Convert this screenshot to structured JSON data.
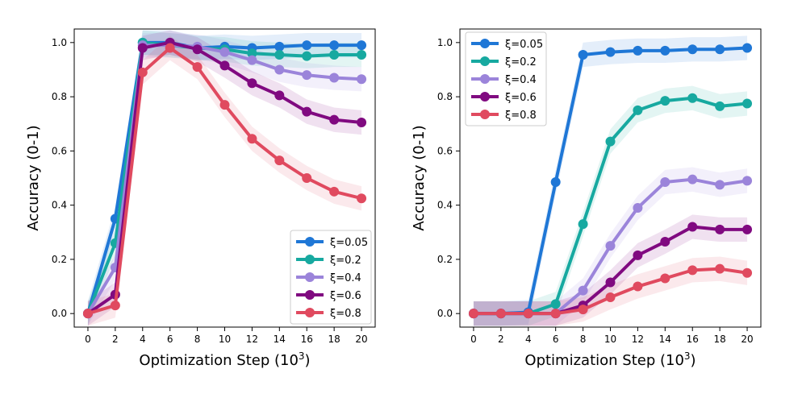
{
  "chart_data": [
    {
      "type": "line",
      "panel": "left",
      "xlabel_main": "Optimization Step (10",
      "xlabel_exp": "3",
      "xlabel_close": ")",
      "ylabel": "Accuracy (0-1)",
      "xlim": [
        -1,
        21
      ],
      "ylim": [
        -0.05,
        1.05
      ],
      "x_ticks": [
        0,
        2,
        4,
        6,
        8,
        10,
        12,
        14,
        16,
        18,
        20
      ],
      "y_ticks": [
        "0.0",
        "0.2",
        "0.4",
        "0.6",
        "0.8",
        "1.0"
      ],
      "x": [
        0,
        2,
        4,
        6,
        8,
        10,
        12,
        14,
        16,
        18,
        20
      ],
      "legend_position": "lower-right",
      "series": [
        {
          "name": "ξ=0.05",
          "color": "#1f77d6",
          "values": [
            0.0,
            0.35,
            1.0,
            1.0,
            0.98,
            0.985,
            0.98,
            0.985,
            0.99,
            0.99,
            0.99
          ]
        },
        {
          "name": "ξ=0.2",
          "color": "#17a9a0",
          "values": [
            0.0,
            0.26,
            1.0,
            0.99,
            0.98,
            0.975,
            0.96,
            0.955,
            0.95,
            0.955,
            0.955
          ]
        },
        {
          "name": "ξ=0.4",
          "color": "#9b84da",
          "values": [
            0.0,
            0.17,
            0.99,
            0.99,
            0.985,
            0.965,
            0.935,
            0.9,
            0.88,
            0.87,
            0.865
          ]
        },
        {
          "name": "ξ=0.6",
          "color": "#800a80",
          "values": [
            0.0,
            0.07,
            0.98,
            1.0,
            0.975,
            0.915,
            0.85,
            0.805,
            0.745,
            0.715,
            0.705
          ]
        },
        {
          "name": "ξ=0.8",
          "color": "#e04a5f",
          "values": [
            0.0,
            0.03,
            0.89,
            0.98,
            0.91,
            0.77,
            0.645,
            0.565,
            0.5,
            0.45,
            0.425
          ]
        }
      ]
    },
    {
      "type": "line",
      "panel": "right",
      "xlabel_main": "Optimization Step (10",
      "xlabel_exp": "3",
      "xlabel_close": ")",
      "ylabel": "Accuracy (0-1)",
      "xlim": [
        -1,
        21
      ],
      "ylim": [
        -0.05,
        1.05
      ],
      "x_ticks": [
        0,
        2,
        4,
        6,
        8,
        10,
        12,
        14,
        16,
        18,
        20
      ],
      "y_ticks": [
        "0.0",
        "0.2",
        "0.4",
        "0.6",
        "0.8",
        "1.0"
      ],
      "x": [
        0,
        2,
        4,
        6,
        8,
        10,
        12,
        14,
        16,
        18,
        20
      ],
      "legend_position": "upper-left",
      "series": [
        {
          "name": "ξ=0.05",
          "color": "#1f77d6",
          "values": [
            0.0,
            0.0,
            0.005,
            0.485,
            0.955,
            0.965,
            0.97,
            0.97,
            0.975,
            0.975,
            0.98
          ]
        },
        {
          "name": "ξ=0.2",
          "color": "#17a9a0",
          "values": [
            0.0,
            0.0,
            0.0,
            0.035,
            0.33,
            0.635,
            0.75,
            0.785,
            0.795,
            0.765,
            0.775
          ]
        },
        {
          "name": "ξ=0.4",
          "color": "#9b84da",
          "values": [
            0.0,
            0.0,
            0.0,
            0.0,
            0.085,
            0.25,
            0.39,
            0.485,
            0.495,
            0.475,
            0.49
          ]
        },
        {
          "name": "ξ=0.6",
          "color": "#800a80",
          "values": [
            0.0,
            0.0,
            0.0,
            0.0,
            0.03,
            0.115,
            0.215,
            0.265,
            0.32,
            0.31,
            0.31
          ]
        },
        {
          "name": "ξ=0.8",
          "color": "#e04a5f",
          "values": [
            0.0,
            0.0,
            0.0,
            0.0,
            0.015,
            0.06,
            0.1,
            0.13,
            0.16,
            0.165,
            0.15
          ]
        }
      ]
    }
  ]
}
